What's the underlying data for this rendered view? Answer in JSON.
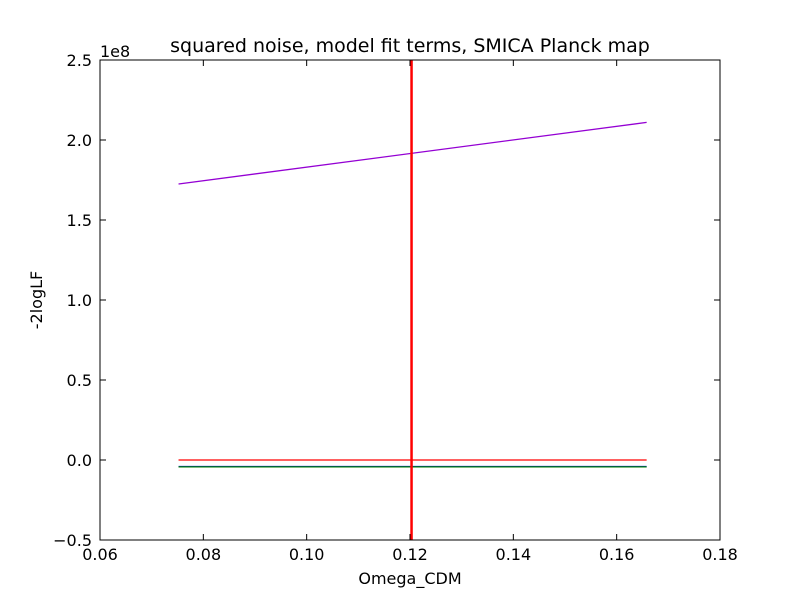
{
  "chart_data": {
    "type": "line",
    "title": "squared noise, model fit terms, SMICA Planck map",
    "xlabel": "Omega_CDM",
    "ylabel": "-2logLF",
    "y_offset_label": "1e8",
    "xlim": [
      0.06,
      0.18
    ],
    "ylim": [
      -0.5,
      2.5
    ],
    "xticks": [
      0.06,
      0.08,
      0.1,
      0.12,
      0.14,
      0.16,
      0.18
    ],
    "xtick_labels": [
      "0.06",
      "0.08",
      "0.10",
      "0.12",
      "0.14",
      "0.16",
      "0.18"
    ],
    "yticks": [
      -0.5,
      0.0,
      0.5,
      1.0,
      1.5,
      2.0,
      2.5
    ],
    "ytick_labels": [
      "−0.5",
      "0.0",
      "0.5",
      "1.0",
      "1.5",
      "2.0",
      "2.5"
    ],
    "grid": false,
    "legend": "none",
    "series": [
      {
        "color": "#9400d3",
        "x": [
          0.0752,
          0.1658
        ],
        "y": [
          1.725,
          2.11
        ]
      },
      {
        "color": "#ff0000",
        "x": [
          0.0752,
          0.1658
        ],
        "y": [
          0.0,
          0.0
        ]
      },
      {
        "color": "#0000ff",
        "x": [
          0.0752,
          0.1658
        ],
        "y": [
          -0.041,
          -0.041
        ]
      },
      {
        "color": "#008000",
        "x": [
          0.0752,
          0.1658
        ],
        "y": [
          -0.043,
          -0.043
        ]
      }
    ],
    "vlines": [
      {
        "x": 0.1203,
        "color": "#ff0000"
      }
    ]
  }
}
